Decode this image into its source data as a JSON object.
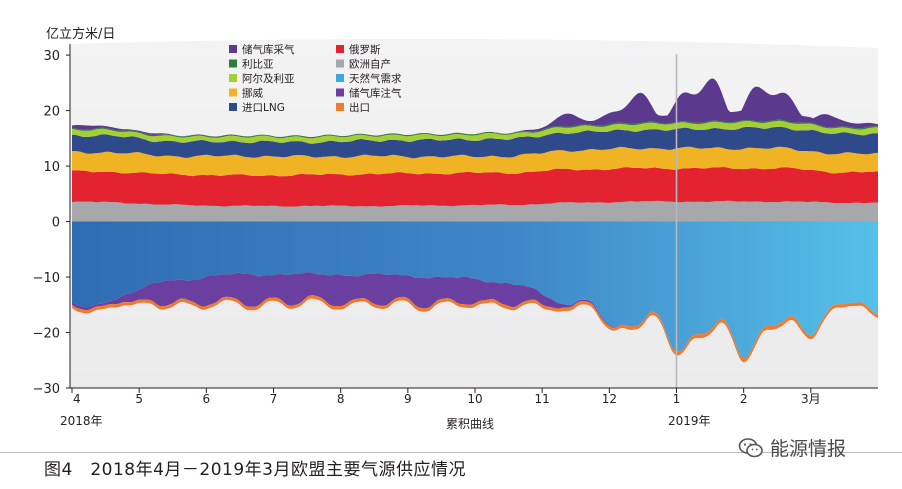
{
  "caption": "图4　2018年4月－2019年3月欧盟主要气源供应情况",
  "watermark": {
    "text": "能源情报",
    "icon": "wechat-icon"
  },
  "chart_data": {
    "type": "area",
    "title": "",
    "ylabel": "亿立方米/日",
    "xlabel": "累积曲线",
    "ylim": [
      -30,
      32
    ],
    "yticks": [
      30,
      20,
      10,
      0,
      -10,
      -20,
      -30
    ],
    "x_ticks": [
      "4",
      "5",
      "6",
      "7",
      "8",
      "9",
      "10",
      "11",
      "12",
      "1",
      "2",
      "3月"
    ],
    "year_labels": [
      "2018年",
      "2019年"
    ],
    "grid": false,
    "legend_position": "top-left",
    "legend": [
      {
        "name": "储气库采气",
        "color": "#5b3a8e"
      },
      {
        "name": "俄罗斯",
        "color": "#e3232f"
      },
      {
        "name": "利比亚",
        "color": "#2f7d3a"
      },
      {
        "name": "欧洲自产",
        "color": "#a6a8ab"
      },
      {
        "name": "阿尔及利亚",
        "color": "#a6ce39"
      },
      {
        "name": "天然气需求",
        "color": "#3da8dd"
      },
      {
        "name": "挪威",
        "color": "#f0b323"
      },
      {
        "name": "储气库注气",
        "color": "#6b3fa0"
      },
      {
        "name": "进口LNG",
        "color": "#2e4a8b"
      },
      {
        "name": "出口",
        "color": "#ee7b30"
      }
    ],
    "categories": [
      "4",
      "5",
      "6",
      "7",
      "8",
      "9",
      "10",
      "11",
      "12",
      "1",
      "2",
      "3月"
    ],
    "series": [
      {
        "name": "欧洲自产",
        "color": "#a6a8ab",
        "values": [
          3.5,
          3.0,
          2.8,
          2.8,
          2.8,
          2.9,
          3.0,
          3.4,
          3.6,
          3.6,
          3.6,
          3.4
        ]
      },
      {
        "name": "俄罗斯",
        "color": "#e3232f",
        "values": [
          5.5,
          5.5,
          5.5,
          5.6,
          5.8,
          5.8,
          5.8,
          6.0,
          6.0,
          6.0,
          6.0,
          5.5
        ]
      },
      {
        "name": "挪威",
        "color": "#f0b323",
        "values": [
          3.5,
          3.3,
          3.5,
          3.3,
          3.2,
          3.0,
          3.0,
          3.5,
          3.6,
          3.6,
          3.6,
          3.3
        ]
      },
      {
        "name": "进口LNG",
        "color": "#2e4a8b",
        "values": [
          3.0,
          2.6,
          2.6,
          2.6,
          2.8,
          3.0,
          3.1,
          3.2,
          3.3,
          3.5,
          3.7,
          3.6
        ]
      },
      {
        "name": "阿尔及利亚",
        "color": "#a6ce39",
        "values": [
          1.0,
          0.9,
          0.9,
          0.9,
          0.9,
          0.9,
          0.9,
          1.0,
          1.1,
          1.1,
          1.1,
          1.0
        ]
      },
      {
        "name": "利比亚",
        "color": "#2f7d3a",
        "values": [
          0.2,
          0.2,
          0.2,
          0.2,
          0.2,
          0.2,
          0.2,
          0.2,
          0.2,
          0.2,
          0.2,
          0.2
        ]
      },
      {
        "name": "储气库采气",
        "color": "#5b3a8e",
        "values": [
          0.5,
          0.1,
          0.0,
          0.0,
          0.0,
          0.0,
          0.0,
          1.5,
          3.5,
          5.5,
          4.5,
          1.0
        ]
      },
      {
        "name": "天然气需求",
        "color": "#3da8dd",
        "values": [
          -14.5,
          -10.5,
          -9.5,
          -9.5,
          -9.6,
          -10.0,
          -11.0,
          -15.0,
          -19.0,
          -21.0,
          -20.0,
          -15.5
        ]
      },
      {
        "name": "储气库注气",
        "color": "#6b3fa0",
        "values": [
          -0.5,
          -4.0,
          -5.0,
          -4.8,
          -4.9,
          -4.6,
          -3.5,
          -0.3,
          0.0,
          0.0,
          0.0,
          0.0
        ]
      },
      {
        "name": "出口",
        "color": "#ee7b30",
        "values": [
          -0.6,
          -0.6,
          -0.6,
          -0.6,
          -0.6,
          -0.6,
          -0.6,
          -0.6,
          -0.6,
          -0.7,
          -0.7,
          -0.6
        ]
      }
    ]
  }
}
